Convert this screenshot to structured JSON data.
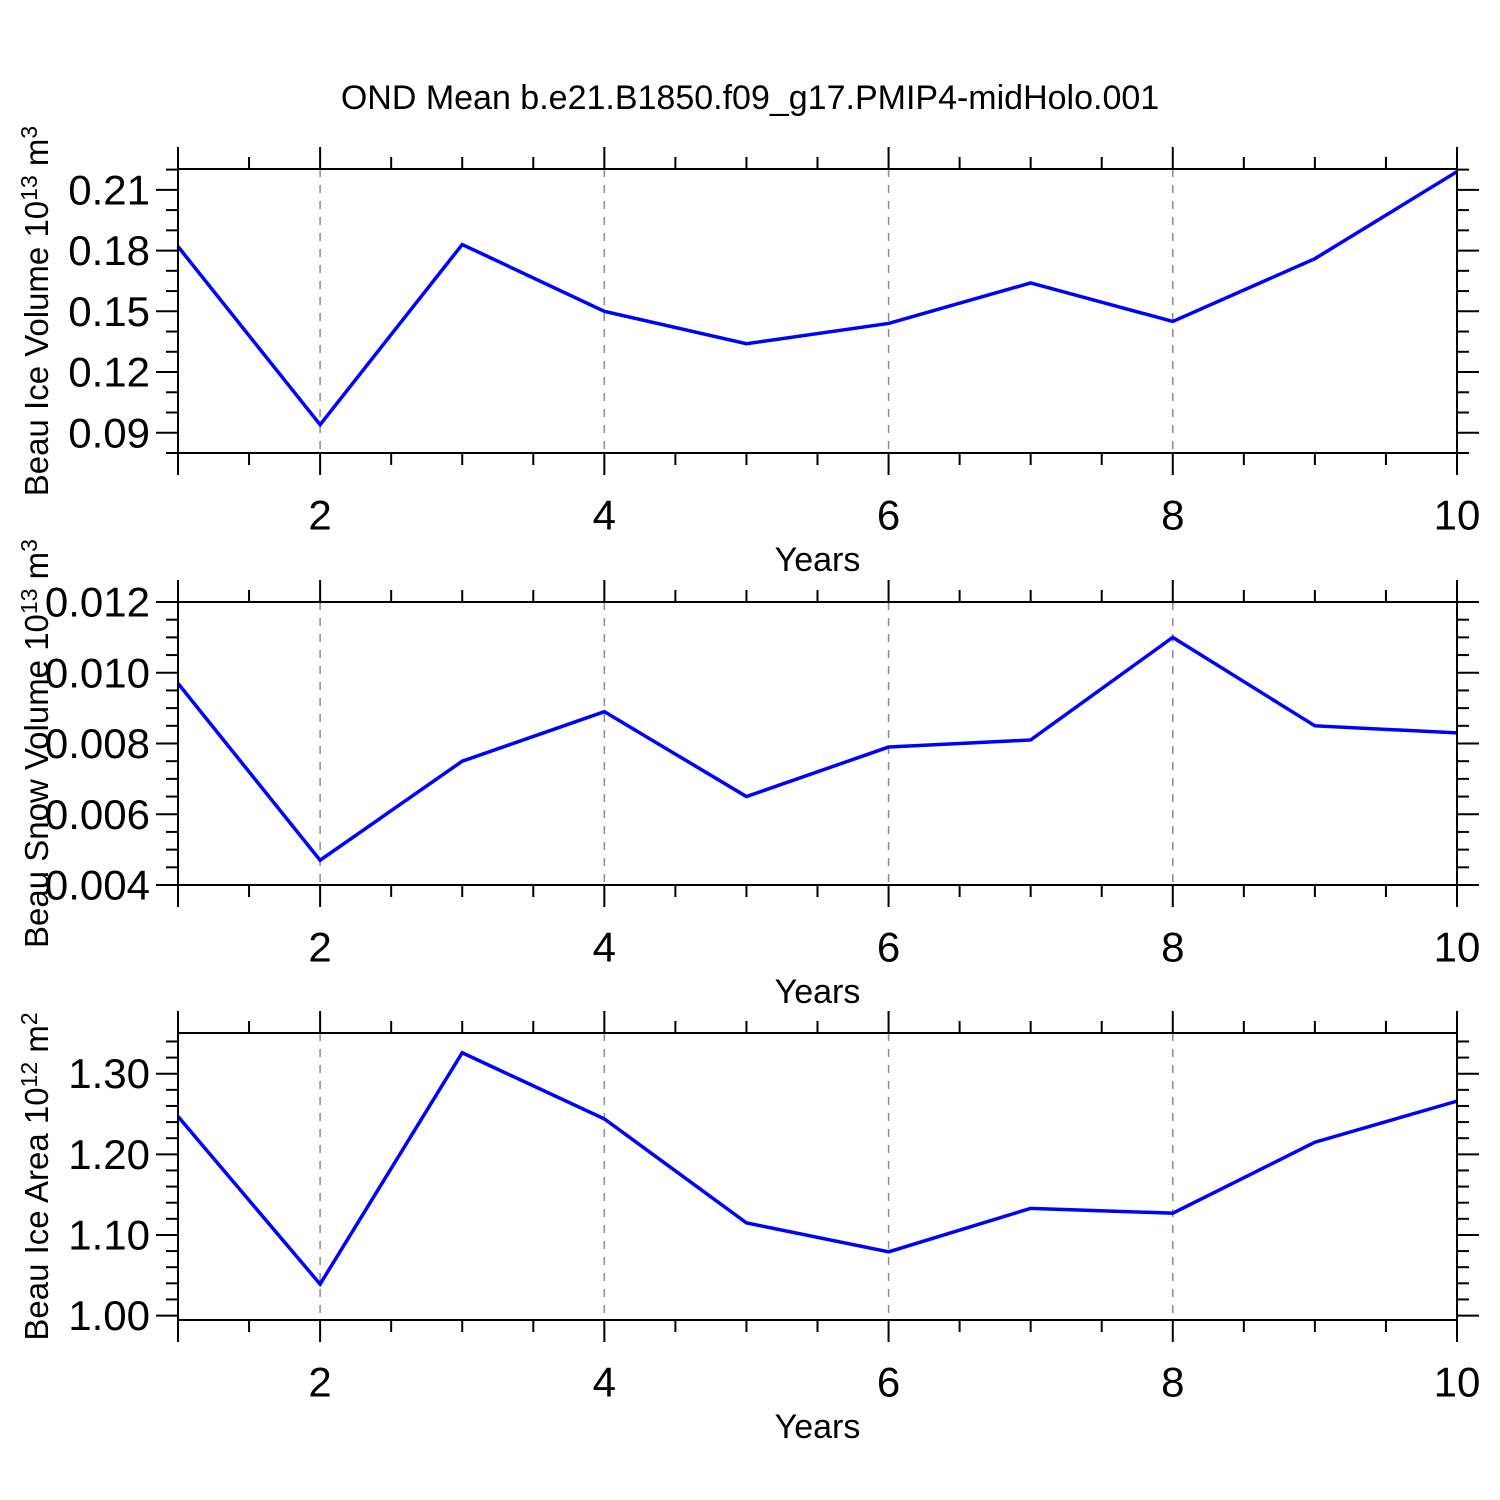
{
  "figure": {
    "title": "OND Mean b.e21.B1850.f09_g17.PMIP4-midHolo.001",
    "background": "#ffffff",
    "axis_color": "#000000",
    "grid_color": "#8c8c8c",
    "line_color": "#0000ff"
  },
  "chart_data": [
    {
      "type": "line",
      "title": "Beau Ice Volume",
      "ylabel_parts": [
        {
          "t": "Beau Ice Volume 10"
        },
        {
          "t": "13",
          "sup": true
        },
        {
          "t": " m"
        },
        {
          "t": "3",
          "sup": true
        }
      ],
      "xlabel": "Years",
      "x": [
        1,
        2,
        3,
        4,
        5,
        6,
        7,
        8,
        9,
        10
      ],
      "values": [
        0.182,
        0.094,
        0.183,
        0.15,
        0.134,
        0.144,
        0.164,
        0.145,
        0.176,
        0.219
      ],
      "ylim": [
        0.08,
        0.2203
      ],
      "yticks": [
        0.09,
        0.12,
        0.15,
        0.18,
        0.21
      ],
      "ytick_labels": [
        "0.09",
        "0.12",
        "0.15",
        "0.18",
        "0.21"
      ],
      "yminor_step": 0.01,
      "xlim": [
        1,
        10
      ],
      "xticks": [
        2,
        4,
        6,
        8,
        10
      ],
      "xtick_labels": [
        "2",
        "4",
        "6",
        "8",
        "10"
      ],
      "xedge_ticks": [
        1,
        10
      ],
      "xminor_step": 0.5,
      "grid_x": [
        2,
        4,
        6,
        8
      ]
    },
    {
      "type": "line",
      "title": "Beau Snow Volume",
      "ylabel_parts": [
        {
          "t": "Beau Snow Volume 10"
        },
        {
          "t": "13",
          "sup": true
        },
        {
          "t": " m"
        },
        {
          "t": "3",
          "sup": true
        }
      ],
      "xlabel": "Years",
      "x": [
        1,
        2,
        3,
        4,
        5,
        6,
        7,
        8,
        9,
        10
      ],
      "values": [
        0.0097,
        0.0047,
        0.0075,
        0.0089,
        0.0065,
        0.0079,
        0.0081,
        0.011,
        0.0085,
        0.0083
      ],
      "ylim": [
        0.004,
        0.012
      ],
      "yticks": [
        0.004,
        0.006,
        0.008,
        0.01,
        0.012
      ],
      "ytick_labels": [
        "0.004",
        "0.006",
        "0.008",
        "0.010",
        "0.012"
      ],
      "yminor_step": 0.0005,
      "xlim": [
        1,
        10
      ],
      "xticks": [
        2,
        4,
        6,
        8,
        10
      ],
      "xtick_labels": [
        "2",
        "4",
        "6",
        "8",
        "10"
      ],
      "xedge_ticks": [
        1,
        10
      ],
      "xminor_step": 0.5,
      "grid_x": [
        2,
        4,
        6,
        8
      ]
    },
    {
      "type": "line",
      "title": "Beau Ice Area",
      "ylabel_parts": [
        {
          "t": "Beau Ice Area 10"
        },
        {
          "t": "12",
          "sup": true
        },
        {
          "t": " m"
        },
        {
          "t": "2",
          "sup": true
        }
      ],
      "xlabel": "Years",
      "x": [
        1,
        2,
        3,
        4,
        5,
        6,
        7,
        8,
        9,
        10
      ],
      "values": [
        1.247,
        1.039,
        1.326,
        1.244,
        1.115,
        1.079,
        1.133,
        1.127,
        1.215,
        1.266
      ],
      "ylim": [
        0.9945,
        1.3505
      ],
      "yticks": [
        1.0,
        1.1,
        1.2,
        1.3
      ],
      "ytick_labels": [
        "1.00",
        "1.10",
        "1.20",
        "1.30"
      ],
      "yminor_step": 0.02,
      "xlim": [
        1,
        10
      ],
      "xticks": [
        2,
        4,
        6,
        8,
        10
      ],
      "xtick_labels": [
        "2",
        "4",
        "6",
        "8",
        "10"
      ],
      "xedge_ticks": [
        1,
        10
      ],
      "xminor_step": 0.5,
      "grid_x": [
        2,
        4,
        6,
        8
      ]
    }
  ]
}
